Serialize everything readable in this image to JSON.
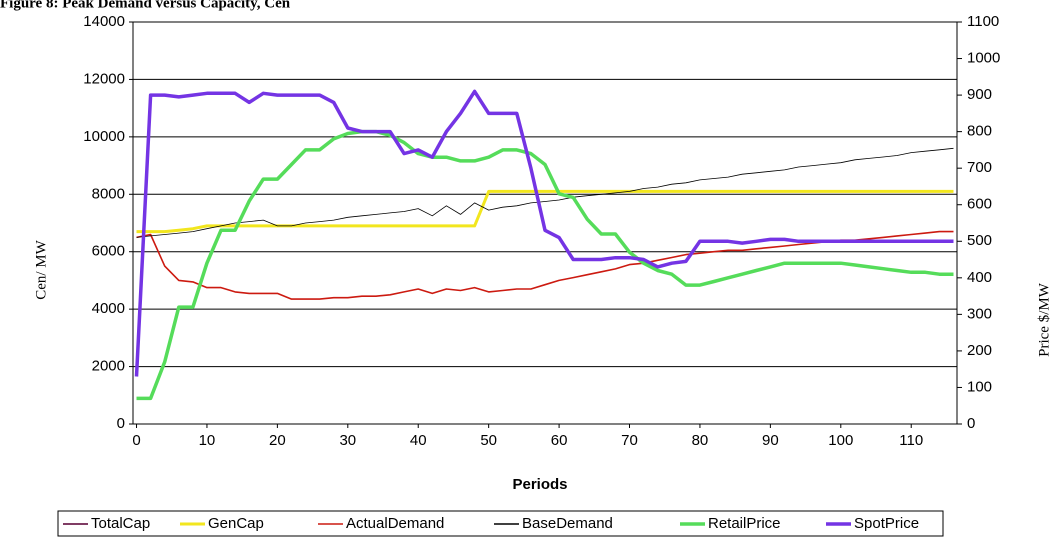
{
  "chart_data": {
    "type": "line",
    "title": "Figure 8: Peak Demand versus Capacity, Cen",
    "x_label": "Periods",
    "y_label": "Cen/ MW",
    "y2_label": "Price $/MW",
    "x": [
      0,
      2,
      4,
      6,
      8,
      10,
      12,
      14,
      16,
      18,
      20,
      22,
      24,
      26,
      28,
      30,
      32,
      34,
      36,
      38,
      40,
      42,
      44,
      46,
      48,
      50,
      52,
      54,
      56,
      58,
      60,
      62,
      64,
      66,
      68,
      70,
      72,
      74,
      76,
      78,
      80,
      82,
      84,
      86,
      88,
      90,
      92,
      94,
      96,
      98,
      100,
      102,
      104,
      106,
      108,
      110,
      112,
      114,
      116
    ],
    "xlim": [
      -0.5,
      116.5
    ],
    "xticks": [
      0,
      10,
      20,
      30,
      40,
      50,
      60,
      70,
      80,
      90,
      100,
      110
    ],
    "ylim": [
      0,
      14000
    ],
    "yticks": [
      0,
      2000,
      4000,
      6000,
      8000,
      10000,
      12000,
      14000
    ],
    "y2lim": [
      0,
      1100
    ],
    "y2ticks": [
      0,
      100,
      200,
      300,
      400,
      500,
      600,
      700,
      800,
      900,
      1000,
      1100
    ],
    "grid": true,
    "series": [
      {
        "name": "TotalCap",
        "color": "#803c64",
        "values": [
          6700,
          6700,
          6700,
          6750,
          6800,
          6900,
          6900,
          6900,
          6900,
          6900,
          6900,
          6900,
          6900,
          6900,
          6900,
          6900,
          6900,
          6900,
          6900,
          6900,
          6900,
          6900,
          6900,
          6900,
          6900,
          8100,
          8100,
          8100,
          8100,
          8100,
          8100,
          8100,
          8100,
          8100,
          8100,
          8100,
          8100,
          8100,
          8100,
          8100,
          8100,
          8100,
          8100,
          8100,
          8100,
          8100,
          8100,
          8100,
          8100,
          8100,
          8100,
          8100,
          8100,
          8100,
          8100,
          8100,
          8100,
          8100,
          8100
        ]
      },
      {
        "name": "GenCap",
        "color": "#f2e61e",
        "values": [
          6700,
          6700,
          6700,
          6750,
          6800,
          6900,
          6900,
          6900,
          6900,
          6900,
          6900,
          6900,
          6900,
          6900,
          6900,
          6900,
          6900,
          6900,
          6900,
          6900,
          6900,
          6900,
          6900,
          6900,
          6900,
          8100,
          8100,
          8100,
          8100,
          8100,
          8100,
          8100,
          8100,
          8100,
          8100,
          8100,
          8100,
          8100,
          8100,
          8100,
          8100,
          8100,
          8100,
          8100,
          8100,
          8100,
          8100,
          8100,
          8100,
          8100,
          8100,
          8100,
          8100,
          8100,
          8100,
          8100,
          8100,
          8100,
          8100
        ]
      },
      {
        "name": "ActualDemand",
        "color": "#cc1a10",
        "values": [
          6500,
          6600,
          5500,
          5000,
          4950,
          4750,
          4750,
          4600,
          4550,
          4550,
          4550,
          4350,
          4350,
          4350,
          4400,
          4400,
          4450,
          4450,
          4500,
          4600,
          4700,
          4550,
          4700,
          4650,
          4750,
          4600,
          4650,
          4700,
          4700,
          4850,
          5000,
          5100,
          5200,
          5300,
          5400,
          5550,
          5600,
          5700,
          5800,
          5900,
          5950,
          6000,
          6050,
          6050,
          6100,
          6150,
          6200,
          6250,
          6300,
          6350,
          6400,
          6400,
          6450,
          6500,
          6550,
          6600,
          6650,
          6700,
          6700
        ]
      },
      {
        "name": "BaseDemand",
        "color": "#000000",
        "values": [
          6500,
          6550,
          6600,
          6650,
          6700,
          6800,
          6900,
          7000,
          7050,
          7100,
          6900,
          6900,
          7000,
          7050,
          7100,
          7200,
          7250,
          7300,
          7350,
          7400,
          7500,
          7250,
          7600,
          7300,
          7700,
          7450,
          7550,
          7600,
          7700,
          7750,
          7800,
          7900,
          7950,
          8000,
          8050,
          8100,
          8200,
          8250,
          8350,
          8400,
          8500,
          8550,
          8600,
          8700,
          8750,
          8800,
          8850,
          8950,
          9000,
          9050,
          9100,
          9200,
          9250,
          9300,
          9350,
          9450,
          9500,
          9550,
          9600
        ]
      },
      {
        "name": "RetailPrice",
        "color": "#55dc5a",
        "axis": "y2",
        "values": [
          70,
          70,
          170,
          320,
          320,
          440,
          530,
          530,
          610,
          670,
          670,
          710,
          750,
          750,
          780,
          795,
          800,
          800,
          790,
          770,
          740,
          730,
          730,
          720,
          720,
          730,
          750,
          750,
          740,
          710,
          630,
          620,
          560,
          520,
          520,
          470,
          440,
          420,
          410,
          380,
          380,
          390,
          400,
          410,
          420,
          430,
          440,
          440,
          440,
          440,
          440,
          435,
          430,
          425,
          420,
          415,
          415,
          410,
          410
        ]
      },
      {
        "name": "SpotPrice",
        "color": "#7434e4",
        "axis": "y2",
        "values": [
          130,
          900,
          900,
          895,
          900,
          905,
          905,
          905,
          880,
          905,
          900,
          900,
          900,
          900,
          880,
          810,
          800,
          800,
          800,
          740,
          750,
          730,
          800,
          850,
          910,
          850,
          850,
          850,
          700,
          530,
          510,
          450,
          450,
          450,
          455,
          455,
          450,
          430,
          440,
          445,
          500,
          500,
          500,
          495,
          500,
          505,
          505,
          500,
          500,
          500,
          500,
          500,
          500,
          500,
          500,
          500,
          500,
          500,
          500
        ]
      }
    ]
  }
}
